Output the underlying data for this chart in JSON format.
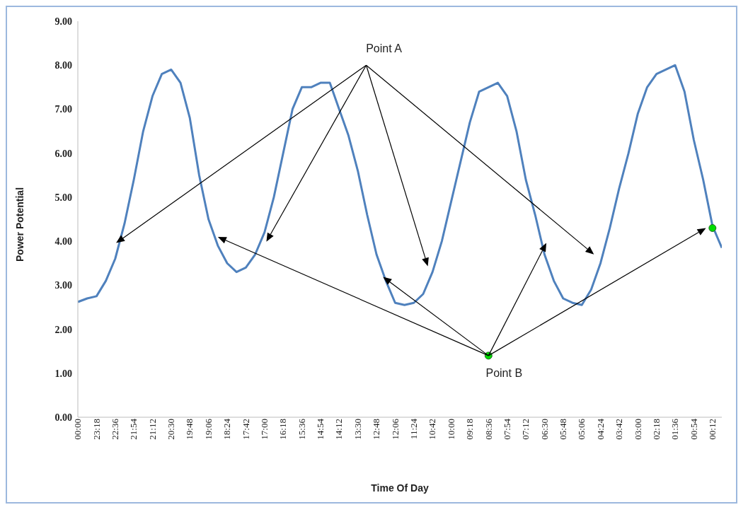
{
  "chart_data": {
    "type": "line",
    "xlabel": "Time Of Day",
    "ylabel": "Power Potential",
    "categories": [
      "00:00",
      null,
      "23:18",
      null,
      "22:36",
      null,
      "21:54",
      null,
      "21:12",
      null,
      "20:30",
      null,
      "19:48",
      null,
      "19:06",
      null,
      "18:24",
      null,
      "17:42",
      null,
      "17:00",
      null,
      "16:18",
      null,
      "15:36",
      null,
      "14:54",
      null,
      "14:12",
      null,
      "13:30",
      null,
      "12:48",
      null,
      "12:06",
      null,
      "11:24",
      null,
      "10:42",
      null,
      "10:00",
      null,
      "09:18",
      null,
      "08:36",
      null,
      "07:54",
      null,
      "07:12",
      null,
      "06:30",
      null,
      "05:48",
      null,
      "05:06",
      null,
      "04:24",
      null,
      "03:42",
      null,
      "03:00",
      null,
      "02:18",
      null,
      "01:36",
      null,
      "00:54",
      null,
      "00:12",
      null
    ],
    "series": [
      {
        "color": "#4f81bd",
        "values": [
          2.62,
          2.7,
          2.75,
          3.1,
          3.6,
          4.4,
          5.4,
          6.5,
          7.3,
          7.8,
          7.9,
          7.6,
          6.8,
          5.5,
          4.5,
          3.9,
          3.5,
          3.3,
          3.4,
          3.7,
          4.2,
          5.0,
          6.0,
          7.0,
          7.5,
          7.5,
          7.6,
          7.6,
          7.0,
          6.4,
          5.6,
          4.6,
          3.7,
          3.1,
          2.6,
          2.55,
          2.6,
          2.8,
          3.3,
          4.0,
          4.9,
          5.8,
          6.7,
          7.4,
          7.5,
          7.6,
          7.3,
          6.5,
          5.4,
          4.6,
          3.7,
          3.1,
          2.7,
          2.6,
          2.55,
          2.9,
          3.5,
          4.3,
          5.2,
          6.0,
          6.9,
          7.5,
          7.8,
          7.9,
          8.0,
          7.4,
          6.3,
          5.4,
          4.35,
          3.85
        ]
      },
      {
        "type": "scatter",
        "marker": "circle",
        "color": "#00dd00",
        "x": [
          "08:36",
          "00:12"
        ],
        "values": [
          1.4,
          4.3
        ]
      }
    ],
    "ylim": [
      0,
      9
    ],
    "yticks": [
      {
        "value": 0,
        "label": "0.00"
      },
      {
        "value": 1,
        "label": "1.00"
      },
      {
        "value": 2,
        "label": "2.00"
      },
      {
        "value": 3,
        "label": "3.00"
      },
      {
        "value": 4,
        "label": "4.00"
      },
      {
        "value": 5,
        "label": "5.00"
      },
      {
        "value": 6,
        "label": "6.00"
      },
      {
        "value": 7,
        "label": "7.00"
      },
      {
        "value": 8,
        "label": "8.00"
      },
      {
        "value": 9,
        "label": "9.00"
      }
    ],
    "grid": false,
    "legend": false,
    "marker": "none",
    "line_style": "solid",
    "annotations": [
      "Point A",
      {
        "text": "Point B",
        "x": "08:36",
        "y": 1.4
      }
    ]
  }
}
